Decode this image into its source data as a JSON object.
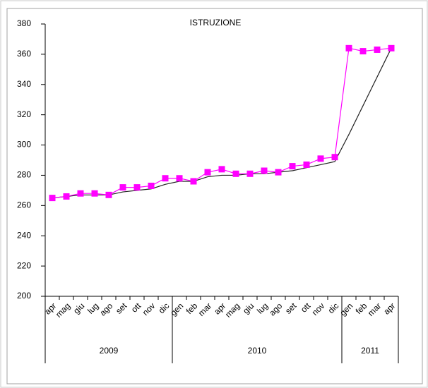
{
  "chart_data": {
    "type": "line",
    "title": "ISTRUZIONE",
    "categories": [
      "apr",
      "mag",
      "giu",
      "lug",
      "ago",
      "set",
      "ott",
      "nov",
      "dic",
      "gen",
      "feb",
      "mar",
      "apr",
      "mag",
      "giu",
      "lug",
      "ago",
      "set",
      "ott",
      "nov",
      "dic",
      "gen",
      "feb",
      "mar",
      "apr"
    ],
    "category_groups": [
      {
        "label": "2009",
        "size": 9
      },
      {
        "label": "2010",
        "size": 12
      },
      {
        "label": "2011",
        "size": 4
      }
    ],
    "series": [
      {
        "color": "#ff00ff",
        "marker": "square",
        "values": [
          265,
          266,
          268,
          268,
          267,
          272,
          272,
          273,
          278,
          278,
          276,
          282,
          284,
          281,
          281,
          283,
          282,
          286,
          287,
          291,
          292,
          364,
          362,
          363,
          364
        ]
      },
      {
        "color": "#222222",
        "marker": "none",
        "values": [
          265,
          266,
          267,
          267,
          267,
          269,
          270,
          271,
          274,
          276,
          276,
          279,
          280,
          280,
          281,
          281,
          282,
          283,
          285,
          287,
          289,
          307,
          326,
          345,
          364
        ]
      }
    ],
    "ylim": [
      200,
      380
    ],
    "yticks": [
      200,
      220,
      240,
      260,
      280,
      300,
      320,
      340,
      360,
      380
    ],
    "grid": false
  }
}
